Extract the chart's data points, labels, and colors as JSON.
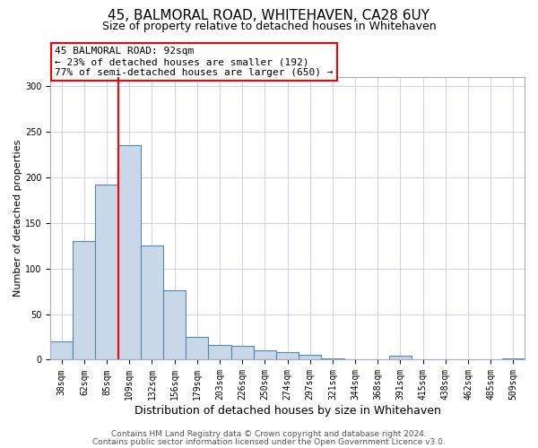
{
  "title": "45, BALMORAL ROAD, WHITEHAVEN, CA28 6UY",
  "subtitle": "Size of property relative to detached houses in Whitehaven",
  "xlabel": "Distribution of detached houses by size in Whitehaven",
  "ylabel": "Number of detached properties",
  "bin_labels": [
    "38sqm",
    "62sqm",
    "85sqm",
    "109sqm",
    "132sqm",
    "156sqm",
    "179sqm",
    "203sqm",
    "226sqm",
    "250sqm",
    "274sqm",
    "297sqm",
    "321sqm",
    "344sqm",
    "368sqm",
    "391sqm",
    "415sqm",
    "438sqm",
    "462sqm",
    "485sqm",
    "509sqm"
  ],
  "bin_values": [
    20,
    130,
    192,
    235,
    125,
    76,
    25,
    16,
    15,
    10,
    8,
    5,
    1,
    0,
    0,
    4,
    0,
    0,
    0,
    0,
    1
  ],
  "bar_color": "#c8d8e8",
  "bar_edge_color": "#5588aa",
  "vline_color": "red",
  "annotation_text": "45 BALMORAL ROAD: 92sqm\n← 23% of detached houses are smaller (192)\n77% of semi-detached houses are larger (650) →",
  "ylim": [
    0,
    310
  ],
  "yticks": [
    0,
    50,
    100,
    150,
    200,
    250,
    300
  ],
  "footer1": "Contains HM Land Registry data © Crown copyright and database right 2024.",
  "footer2": "Contains public sector information licensed under the Open Government Licence v3.0.",
  "title_fontsize": 11,
  "subtitle_fontsize": 9,
  "xlabel_fontsize": 9,
  "ylabel_fontsize": 8,
  "tick_fontsize": 7,
  "annotation_fontsize": 8,
  "footer_fontsize": 6.5,
  "vline_x": 2.5
}
